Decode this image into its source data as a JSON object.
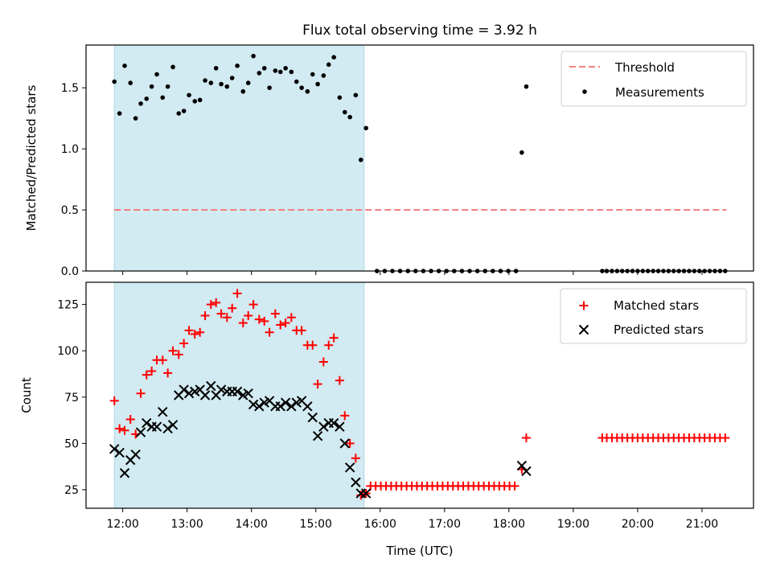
{
  "title": "Flux total observing time = 3.92 h",
  "colors": {
    "shade": "#add8e6",
    "threshold": "#f08080",
    "measurement": "#000000",
    "matched": "#ff0000",
    "predicted": "#000000"
  },
  "chart_data": [
    {
      "type": "scatter",
      "ylabel": "Matched/Predicted stars",
      "xlim": [
        11.43,
        21.8
      ],
      "ylim": [
        0,
        1.85
      ],
      "yticks": [
        0.0,
        0.5,
        1.0,
        1.5
      ],
      "ytick_labels": [
        "0.0",
        "0.5",
        "1.0",
        "1.5"
      ],
      "shaded_region": [
        11.87,
        15.75
      ],
      "threshold": {
        "label": "Threshold",
        "value": 0.5,
        "x_range": [
          11.87,
          21.38
        ]
      },
      "legend": {
        "position": "top-right",
        "entries": [
          "Threshold",
          "Measurements"
        ]
      },
      "series": [
        {
          "name": "Measurements",
          "x": [
            11.87,
            11.95,
            12.03,
            12.12,
            12.2,
            12.28,
            12.37,
            12.45,
            12.53,
            12.62,
            12.7,
            12.78,
            12.87,
            12.95,
            13.03,
            13.12,
            13.2,
            13.28,
            13.37,
            13.45,
            13.53,
            13.62,
            13.7,
            13.78,
            13.87,
            13.95,
            14.03,
            14.12,
            14.2,
            14.28,
            14.37,
            14.45,
            14.53,
            14.62,
            14.7,
            14.78,
            14.87,
            14.95,
            15.03,
            15.12,
            15.2,
            15.28,
            15.37,
            15.45,
            15.53,
            15.62,
            15.7,
            15.78,
            15.95,
            16.07,
            16.19,
            16.31,
            16.43,
            16.55,
            16.67,
            16.79,
            16.91,
            17.03,
            17.15,
            17.27,
            17.39,
            17.51,
            17.63,
            17.75,
            17.87,
            17.99,
            18.11,
            18.2,
            18.27,
            19.45,
            19.52,
            19.6,
            19.68,
            19.76,
            19.84,
            19.92,
            20.0,
            20.08,
            20.16,
            20.24,
            20.32,
            20.4,
            20.48,
            20.56,
            20.64,
            20.72,
            20.8,
            20.88,
            20.96,
            21.04,
            21.12,
            21.2,
            21.28,
            21.36
          ],
          "y": [
            1.55,
            1.29,
            1.68,
            1.54,
            1.25,
            1.37,
            1.41,
            1.51,
            1.61,
            1.42,
            1.51,
            1.67,
            1.29,
            1.31,
            1.44,
            1.39,
            1.4,
            1.56,
            1.54,
            1.66,
            1.53,
            1.51,
            1.58,
            1.68,
            1.47,
            1.54,
            1.76,
            1.62,
            1.66,
            1.5,
            1.64,
            1.63,
            1.66,
            1.63,
            1.55,
            1.5,
            1.47,
            1.61,
            1.53,
            1.6,
            1.69,
            1.75,
            1.42,
            1.3,
            1.26,
            1.44,
            0.91,
            1.17,
            0,
            0,
            0,
            0,
            0,
            0,
            0,
            0,
            0,
            0,
            0,
            0,
            0,
            0,
            0,
            0,
            0,
            0,
            0,
            0.97,
            1.51,
            0,
            0,
            0,
            0,
            0,
            0,
            0,
            0,
            0,
            0,
            0,
            0,
            0,
            0,
            0,
            0,
            0,
            0,
            0,
            0,
            0,
            0,
            0,
            0,
            0
          ]
        }
      ]
    },
    {
      "type": "scatter",
      "xlabel": "Time (UTC)",
      "ylabel": "Count",
      "xlim": [
        11.43,
        21.8
      ],
      "ylim": [
        15,
        137
      ],
      "xticks": [
        12,
        13,
        14,
        15,
        16,
        17,
        18,
        19,
        20,
        21
      ],
      "xtick_labels": [
        "12:00",
        "13:00",
        "14:00",
        "15:00",
        "16:00",
        "17:00",
        "18:00",
        "19:00",
        "20:00",
        "21:00"
      ],
      "yticks": [
        25,
        50,
        75,
        100,
        125
      ],
      "ytick_labels": [
        "25",
        "50",
        "75",
        "100",
        "125"
      ],
      "shaded_region": [
        11.87,
        15.75
      ],
      "legend": {
        "position": "top-right",
        "entries": [
          "Matched stars",
          "Predicted stars"
        ]
      },
      "series": [
        {
          "name": "Matched stars",
          "marker": "+",
          "x": [
            11.87,
            11.95,
            12.03,
            12.12,
            12.2,
            12.28,
            12.37,
            12.45,
            12.53,
            12.62,
            12.7,
            12.78,
            12.87,
            12.95,
            13.03,
            13.12,
            13.2,
            13.28,
            13.37,
            13.45,
            13.53,
            13.62,
            13.7,
            13.78,
            13.87,
            13.95,
            14.03,
            14.12,
            14.2,
            14.28,
            14.37,
            14.45,
            14.53,
            14.62,
            14.7,
            14.78,
            14.87,
            14.95,
            15.03,
            15.12,
            15.2,
            15.28,
            15.37,
            15.45,
            15.53,
            15.62,
            15.7,
            15.78,
            15.85,
            15.93,
            16.01,
            16.09,
            16.17,
            16.25,
            16.33,
            16.41,
            16.49,
            16.57,
            16.65,
            16.73,
            16.81,
            16.89,
            16.97,
            17.05,
            17.13,
            17.21,
            17.29,
            17.37,
            17.45,
            17.53,
            17.61,
            17.69,
            17.77,
            17.85,
            17.93,
            18.01,
            18.09,
            18.2,
            18.27,
            19.45,
            19.52,
            19.6,
            19.68,
            19.76,
            19.84,
            19.92,
            20.0,
            20.08,
            20.16,
            20.24,
            20.32,
            20.4,
            20.48,
            20.56,
            20.64,
            20.72,
            20.8,
            20.88,
            20.96,
            21.04,
            21.12,
            21.2,
            21.28,
            21.36
          ],
          "y": [
            73,
            58,
            57,
            63,
            55,
            77,
            87,
            89,
            95,
            95,
            88,
            100,
            98,
            104,
            111,
            109,
            110,
            119,
            125,
            126,
            120,
            118,
            123,
            131,
            115,
            119,
            125,
            117,
            116,
            110,
            120,
            114,
            115,
            118,
            111,
            111,
            103,
            103,
            82,
            94,
            103,
            107,
            84,
            65,
            50,
            42,
            22,
            23,
            27,
            27,
            27,
            27,
            27,
            27,
            27,
            27,
            27,
            27,
            27,
            27,
            27,
            27,
            27,
            27,
            27,
            27,
            27,
            27,
            27,
            27,
            27,
            27,
            27,
            27,
            27,
            27,
            27,
            36,
            53,
            53,
            53,
            53,
            53,
            53,
            53,
            53,
            53,
            53,
            53,
            53,
            53,
            53,
            53,
            53,
            53,
            53,
            53,
            53,
            53,
            53,
            53,
            53,
            53,
            53
          ]
        },
        {
          "name": "Predicted stars",
          "marker": "x",
          "x": [
            11.87,
            11.95,
            12.03,
            12.12,
            12.2,
            12.28,
            12.37,
            12.45,
            12.53,
            12.62,
            12.7,
            12.78,
            12.87,
            12.95,
            13.03,
            13.12,
            13.2,
            13.28,
            13.37,
            13.45,
            13.53,
            13.62,
            13.7,
            13.78,
            13.87,
            13.95,
            14.03,
            14.12,
            14.2,
            14.28,
            14.37,
            14.45,
            14.53,
            14.62,
            14.7,
            14.78,
            14.87,
            14.95,
            15.03,
            15.12,
            15.2,
            15.28,
            15.37,
            15.45,
            15.53,
            15.62,
            15.7,
            15.78,
            18.2,
            18.27
          ],
          "y": [
            47,
            45,
            34,
            41,
            44,
            56,
            61,
            59,
            59,
            67,
            58,
            60,
            76,
            79,
            77,
            78,
            79,
            76,
            81,
            76,
            79,
            78,
            78,
            78,
            76,
            77,
            71,
            70,
            72,
            73,
            70,
            70,
            72,
            70,
            72,
            73,
            70,
            64,
            54,
            59,
            61,
            61,
            59,
            50,
            37,
            29,
            23,
            23,
            38,
            35
          ]
        }
      ]
    }
  ]
}
